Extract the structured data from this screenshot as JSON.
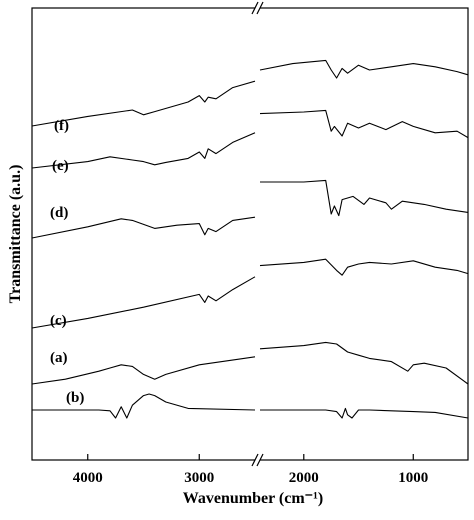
{
  "chart_data": {
    "type": "line",
    "xlabel": "Wavenumber (cm⁻¹)",
    "ylabel": "Transmittance (a.u.)",
    "x_reversed": true,
    "axis_break": [
      2500,
      2400
    ],
    "x_segments": [
      [
        4500,
        2500
      ],
      [
        2400,
        500
      ]
    ],
    "x_ticks": [
      {
        "value": 4000,
        "label": "4000"
      },
      {
        "value": 3000,
        "label": "3000"
      },
      {
        "value": 2000,
        "label": "2000"
      },
      {
        "value": 1000,
        "label": "1000"
      }
    ],
    "y_ticks_shown": false,
    "series": [
      {
        "name": "(a)",
        "offset": 1,
        "points": [
          [
            4500,
            0.5
          ],
          [
            3900,
            0.5
          ],
          [
            3800,
            0.45
          ],
          [
            3750,
            0.0
          ],
          [
            3700,
            0.7
          ],
          [
            3650,
            0.0
          ],
          [
            3600,
            0.8
          ],
          [
            3500,
            1.4
          ],
          [
            3450,
            1.5
          ],
          [
            3400,
            1.4
          ],
          [
            3300,
            1.0
          ],
          [
            3100,
            0.6
          ],
          [
            2500,
            0.5
          ],
          [
            2400,
            0.5
          ],
          [
            1800,
            0.5
          ],
          [
            1700,
            0.4
          ],
          [
            1650,
            0.0
          ],
          [
            1620,
            0.6
          ],
          [
            1600,
            0.2
          ],
          [
            1560,
            0.0
          ],
          [
            1500,
            0.5
          ],
          [
            1400,
            0.5
          ],
          [
            1200,
            0.45
          ],
          [
            1000,
            0.4
          ],
          [
            800,
            0.35
          ],
          [
            500,
            0.0
          ]
        ]
      },
      {
        "name": "(b)",
        "offset": 0,
        "points": [
          [
            4500,
            0.0
          ],
          [
            4200,
            0.3
          ],
          [
            3900,
            0.8
          ],
          [
            3800,
            1.0
          ],
          [
            3700,
            1.2
          ],
          [
            3600,
            1.1
          ],
          [
            3500,
            0.6
          ],
          [
            3400,
            0.3
          ],
          [
            3300,
            0.6
          ],
          [
            3000,
            1.2
          ],
          [
            2600,
            1.6
          ],
          [
            2500,
            1.7
          ],
          [
            2400,
            2.2
          ],
          [
            2000,
            2.4
          ],
          [
            1800,
            2.6
          ],
          [
            1700,
            2.5
          ],
          [
            1600,
            2.0
          ],
          [
            1500,
            1.8
          ],
          [
            1400,
            1.6
          ],
          [
            1200,
            1.4
          ],
          [
            1050,
            0.8
          ],
          [
            1000,
            1.2
          ],
          [
            900,
            1.3
          ],
          [
            700,
            1.0
          ],
          [
            500,
            0.0
          ]
        ]
      },
      {
        "name": "(c)",
        "offset": 2,
        "points": [
          [
            4500,
            0.0
          ],
          [
            4000,
            0.6
          ],
          [
            3500,
            1.3
          ],
          [
            3000,
            2.1
          ],
          [
            2950,
            1.6
          ],
          [
            2920,
            2.0
          ],
          [
            2850,
            1.7
          ],
          [
            2700,
            2.4
          ],
          [
            2500,
            3.2
          ],
          [
            2400,
            3.9
          ],
          [
            2000,
            4.1
          ],
          [
            1800,
            4.3
          ],
          [
            1700,
            3.6
          ],
          [
            1650,
            3.3
          ],
          [
            1600,
            3.8
          ],
          [
            1500,
            4.0
          ],
          [
            1400,
            4.1
          ],
          [
            1200,
            4.0
          ],
          [
            1000,
            4.2
          ],
          [
            800,
            3.8
          ],
          [
            600,
            3.6
          ],
          [
            500,
            3.4
          ]
        ]
      },
      {
        "name": "(d)",
        "offset": 3,
        "points": [
          [
            4500,
            0.0
          ],
          [
            4000,
            0.7
          ],
          [
            3700,
            1.2
          ],
          [
            3600,
            1.1
          ],
          [
            3400,
            0.6
          ],
          [
            3200,
            0.8
          ],
          [
            3000,
            0.9
          ],
          [
            2950,
            0.2
          ],
          [
            2920,
            0.6
          ],
          [
            2850,
            0.4
          ],
          [
            2700,
            1.1
          ],
          [
            2500,
            1.3
          ],
          [
            2400,
            3.5
          ],
          [
            2000,
            3.5
          ],
          [
            1800,
            3.6
          ],
          [
            1750,
            1.5
          ],
          [
            1720,
            2.0
          ],
          [
            1680,
            1.4
          ],
          [
            1650,
            2.4
          ],
          [
            1550,
            2.6
          ],
          [
            1450,
            2.1
          ],
          [
            1400,
            2.5
          ],
          [
            1250,
            2.2
          ],
          [
            1200,
            1.8
          ],
          [
            1100,
            2.3
          ],
          [
            900,
            2.1
          ],
          [
            700,
            1.8
          ],
          [
            500,
            1.6
          ]
        ]
      },
      {
        "name": "(e)",
        "offset": 4,
        "points": [
          [
            4500,
            0.0
          ],
          [
            4000,
            0.4
          ],
          [
            3800,
            0.7
          ],
          [
            3600,
            0.5
          ],
          [
            3500,
            0.4
          ],
          [
            3400,
            0.2
          ],
          [
            3300,
            0.35
          ],
          [
            3100,
            0.6
          ],
          [
            3000,
            1.0
          ],
          [
            2950,
            0.6
          ],
          [
            2920,
            1.2
          ],
          [
            2850,
            0.9
          ],
          [
            2700,
            1.6
          ],
          [
            2500,
            2.2
          ],
          [
            2400,
            3.4
          ],
          [
            2000,
            3.5
          ],
          [
            1800,
            3.6
          ],
          [
            1750,
            2.3
          ],
          [
            1720,
            2.6
          ],
          [
            1650,
            2.0
          ],
          [
            1600,
            2.8
          ],
          [
            1500,
            2.5
          ],
          [
            1400,
            2.8
          ],
          [
            1250,
            2.4
          ],
          [
            1100,
            2.9
          ],
          [
            1000,
            2.6
          ],
          [
            800,
            2.2
          ],
          [
            600,
            2.3
          ],
          [
            500,
            1.9
          ]
        ]
      },
      {
        "name": "(f)",
        "offset": 5,
        "points": [
          [
            4500,
            0.0
          ],
          [
            4000,
            0.6
          ],
          [
            3600,
            1.0
          ],
          [
            3500,
            0.7
          ],
          [
            3400,
            0.9
          ],
          [
            3100,
            1.5
          ],
          [
            3000,
            1.9
          ],
          [
            2950,
            1.5
          ],
          [
            2920,
            1.8
          ],
          [
            2850,
            1.7
          ],
          [
            2700,
            2.4
          ],
          [
            2500,
            2.8
          ],
          [
            2400,
            3.5
          ],
          [
            2100,
            3.9
          ],
          [
            1800,
            4.1
          ],
          [
            1750,
            3.5
          ],
          [
            1700,
            3.0
          ],
          [
            1650,
            3.6
          ],
          [
            1600,
            3.3
          ],
          [
            1500,
            3.8
          ],
          [
            1400,
            3.5
          ],
          [
            1200,
            3.7
          ],
          [
            1000,
            3.9
          ],
          [
            800,
            3.7
          ],
          [
            600,
            3.4
          ],
          [
            500,
            3.2
          ]
        ]
      }
    ]
  }
}
